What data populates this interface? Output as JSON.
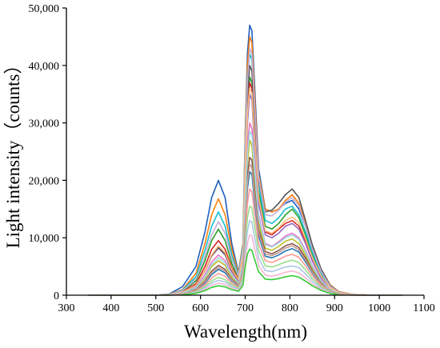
{
  "chart_data": {
    "type": "line",
    "xlabel": "Wavelength(nm)",
    "ylabel": "Light intensity（counts）",
    "xlim": [
      300,
      1100
    ],
    "ylim": [
      0,
      50000
    ],
    "x_ticks": [
      300,
      400,
      500,
      600,
      700,
      800,
      900,
      1000,
      1100
    ],
    "x_tick_labels": [
      "300",
      "400",
      "500",
      "600",
      "700",
      "800",
      "900",
      "1000",
      "1100"
    ],
    "y_ticks": [
      0,
      10000,
      20000,
      30000,
      40000,
      50000
    ],
    "y_tick_labels": [
      "0",
      "10,000",
      "20,000",
      "30,000",
      "40,000",
      "50,000"
    ],
    "grid": false,
    "legend": "none",
    "x": [
      350,
      500,
      530,
      560,
      590,
      610,
      625,
      640,
      655,
      670,
      685,
      695,
      700,
      705,
      710,
      715,
      720,
      730,
      745,
      760,
      775,
      790,
      805,
      820,
      835,
      850,
      870,
      890,
      910,
      940,
      970,
      1000,
      1050
    ],
    "series": [
      {
        "color": "#1f5fbf",
        "values": [
          0,
          0,
          200,
          1500,
          5000,
          11000,
          17000,
          20000,
          17000,
          9000,
          4000,
          9000,
          28000,
          42000,
          47000,
          46000,
          38000,
          22000,
          15000,
          14500,
          15000,
          16000,
          16500,
          15000,
          12000,
          8000,
          4000,
          1500,
          500,
          100,
          30,
          0,
          0
        ]
      },
      {
        "color": "#ff7f0e",
        "values": [
          0,
          0,
          150,
          1000,
          3800,
          9000,
          14000,
          16800,
          14000,
          8000,
          3800,
          9000,
          28000,
          40000,
          45000,
          44000,
          36000,
          21000,
          15000,
          14500,
          15000,
          16500,
          17500,
          16000,
          12500,
          8500,
          4500,
          1800,
          600,
          150,
          40,
          0,
          0
        ]
      },
      {
        "color": "#2ca02c",
        "values": [
          0,
          0,
          100,
          700,
          2500,
          6000,
          9500,
          11500,
          9500,
          5500,
          3000,
          7500,
          22000,
          33000,
          38000,
          37000,
          30000,
          18000,
          12000,
          11500,
          12500,
          14000,
          15000,
          13500,
          10500,
          7000,
          3500,
          1300,
          400,
          100,
          30,
          0,
          0
        ]
      },
      {
        "color": "#d62728",
        "values": [
          0,
          0,
          100,
          600,
          2000,
          5000,
          8000,
          9500,
          8000,
          4800,
          2800,
          7000,
          21000,
          32000,
          37000,
          36000,
          29000,
          17000,
          11000,
          10500,
          11500,
          12500,
          13000,
          12000,
          9500,
          6500,
          3200,
          1200,
          400,
          100,
          20,
          0,
          0
        ]
      },
      {
        "color": "#9467bd",
        "values": [
          0,
          0,
          80,
          500,
          1700,
          4200,
          6800,
          8200,
          7000,
          4200,
          2500,
          6500,
          20000,
          30000,
          35000,
          34000,
          27000,
          16000,
          10500,
          10000,
          10800,
          12000,
          12500,
          11500,
          9000,
          6000,
          3000,
          1100,
          350,
          90,
          20,
          0,
          0
        ]
      },
      {
        "color": "#17becf",
        "values": [
          0,
          0,
          120,
          900,
          3200,
          7800,
          12000,
          14500,
          12000,
          7000,
          3500,
          8500,
          26000,
          38000,
          42000,
          41000,
          33000,
          19000,
          13000,
          12500,
          13500,
          15000,
          15500,
          14000,
          11000,
          7500,
          3800,
          1400,
          450,
          120,
          30,
          0,
          0
        ]
      },
      {
        "color": "#e377c2",
        "values": [
          0,
          0,
          70,
          400,
          1400,
          3500,
          5800,
          7000,
          6000,
          3700,
          2200,
          5500,
          17000,
          26000,
          30000,
          29000,
          23000,
          14000,
          9000,
          8500,
          9300,
          10300,
          10800,
          10000,
          7800,
          5200,
          2600,
          950,
          300,
          80,
          20,
          0,
          0
        ]
      },
      {
        "color": "#bcbd22",
        "values": [
          0,
          0,
          60,
          350,
          1200,
          3000,
          5000,
          6000,
          5200,
          3200,
          2000,
          5000,
          15000,
          23000,
          27000,
          26000,
          21000,
          12500,
          8200,
          7800,
          8500,
          9400,
          9800,
          9000,
          7000,
          4700,
          2300,
          850,
          280,
          70,
          20,
          0,
          0
        ]
      },
      {
        "color": "#555555",
        "values": [
          0,
          0,
          90,
          550,
          1800,
          4300,
          6900,
          8300,
          7100,
          4300,
          2600,
          7200,
          23000,
          35000,
          40000,
          39000,
          32000,
          20000,
          14500,
          14800,
          16000,
          17500,
          18500,
          17000,
          13000,
          8800,
          4500,
          1700,
          550,
          140,
          30,
          0,
          0
        ]
      },
      {
        "color": "#8c564b",
        "values": [
          0,
          0,
          50,
          300,
          1000,
          2500,
          4200,
          5200,
          4500,
          2800,
          1800,
          4500,
          13500,
          21000,
          24000,
          23500,
          19000,
          11500,
          7600,
          7200,
          7800,
          8600,
          9000,
          8300,
          6500,
          4300,
          2100,
          780,
          250,
          60,
          15,
          0,
          0
        ]
      },
      {
        "color": "#1f77b4",
        "values": [
          0,
          0,
          40,
          250,
          850,
          2100,
          3600,
          4500,
          3900,
          2500,
          1600,
          4000,
          12000,
          18500,
          21500,
          21000,
          17000,
          10300,
          6800,
          6500,
          7000,
          7700,
          8100,
          7500,
          5800,
          3900,
          1900,
          700,
          220,
          55,
          15,
          0,
          0
        ]
      },
      {
        "color": "#ff9896",
        "values": [
          0,
          0,
          35,
          200,
          700,
          1800,
          3000,
          3800,
          3300,
          2100,
          1400,
          3500,
          10500,
          16000,
          18500,
          18000,
          14800,
          9000,
          6000,
          5700,
          6200,
          6800,
          7100,
          6600,
          5100,
          3400,
          1700,
          620,
          200,
          50,
          10,
          0,
          0
        ]
      },
      {
        "color": "#98df8a",
        "values": [
          0,
          0,
          30,
          170,
          600,
          1500,
          2500,
          3100,
          2700,
          1800,
          1200,
          3000,
          9000,
          13500,
          15500,
          15200,
          12500,
          7700,
          5100,
          4900,
          5300,
          5800,
          6100,
          5700,
          4400,
          2900,
          1450,
          530,
          170,
          40,
          10,
          0,
          0
        ]
      },
      {
        "color": "#aec7e8",
        "values": [
          0,
          0,
          25,
          140,
          500,
          1250,
          2100,
          2600,
          2300,
          1500,
          1000,
          2500,
          7500,
          11200,
          13000,
          12700,
          10400,
          6400,
          4300,
          4100,
          4500,
          4900,
          5100,
          4800,
          3700,
          2450,
          1200,
          450,
          140,
          35,
          10,
          0,
          0
        ]
      },
      {
        "color": "#f7b6d2",
        "values": [
          0,
          0,
          20,
          110,
          400,
          1000,
          1700,
          2100,
          1850,
          1250,
          850,
          2000,
          6000,
          9000,
          10500,
          10300,
          8400,
          5200,
          3500,
          3300,
          3600,
          4000,
          4200,
          3900,
          3000,
          2000,
          1000,
          370,
          115,
          30,
          5,
          0,
          0
        ]
      },
      {
        "color": "#32cd32",
        "values": [
          0,
          0,
          15,
          90,
          320,
          800,
          1350,
          1650,
          1450,
          980,
          680,
          1700,
          5000,
          7200,
          8000,
          7800,
          6500,
          4100,
          2800,
          2700,
          2900,
          3200,
          3400,
          3150,
          2450,
          1650,
          820,
          300,
          95,
          25,
          5,
          0,
          0
        ]
      },
      {
        "color": "#c5b0d5",
        "values": [
          0,
          0,
          110,
          800,
          2800,
          6800,
          10500,
          12800,
          10800,
          6300,
          3300,
          8000,
          25000,
          37000,
          43000,
          42000,
          34000,
          20500,
          14000,
          13800,
          14800,
          16200,
          17000,
          15600,
          12000,
          8100,
          4100,
          1550,
          500,
          130,
          30,
          0,
          0
        ]
      },
      {
        "color": "#ffbb78",
        "values": [
          0,
          0,
          85,
          520,
          1750,
          4300,
          7000,
          8600,
          7400,
          4500,
          2700,
          6800,
          21000,
          31500,
          36000,
          35200,
          28500,
          17000,
          11200,
          10800,
          11700,
          13000,
          13600,
          12600,
          9800,
          6600,
          3300,
          1250,
          400,
          100,
          25,
          0,
          0
        ]
      },
      {
        "color": "#9edae5",
        "values": [
          0,
          0,
          65,
          380,
          1300,
          3200,
          5300,
          6500,
          5600,
          3500,
          2100,
          5300,
          16000,
          24500,
          28500,
          27800,
          22500,
          13500,
          8800,
          8400,
          9100,
          10000,
          10500,
          9700,
          7500,
          5000,
          2500,
          920,
          290,
          75,
          20,
          0,
          0
        ]
      },
      {
        "color": "#c49c94",
        "values": [
          0,
          0,
          45,
          270,
          920,
          2300,
          3900,
          4800,
          4200,
          2650,
          1700,
          4200,
          12800,
          19500,
          22800,
          22200,
          18000,
          10900,
          7200,
          6900,
          7400,
          8200,
          8600,
          7900,
          6100,
          4100,
          2000,
          740,
          235,
          58,
          15,
          0,
          0
        ]
      }
    ]
  }
}
